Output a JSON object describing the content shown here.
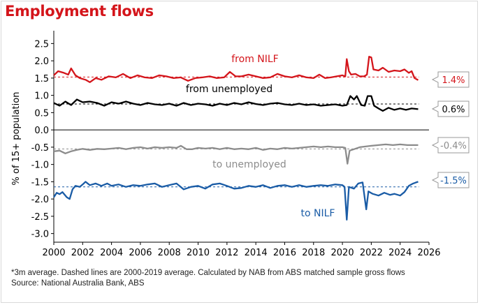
{
  "title": "Employment flows",
  "footnote": {
    "line1": "*3m average. Dashed lines are 2000-2019 average. Calculated by NAB from ABS matched sample gross flows",
    "line2": "Source: National Australia Bank, ABS"
  },
  "colors": {
    "title": "#d4151b",
    "from_nilf": "#d4151b",
    "from_unemployed": "#000000",
    "to_unemployed": "#8c8c8c",
    "to_nilf": "#1a5ca6"
  },
  "chart_data": {
    "type": "line",
    "title": "Employment flows",
    "ylabel": "% of 15+ population",
    "xlabel": "",
    "xlim": [
      2000,
      2026
    ],
    "ylim": [
      -3.25,
      2.75
    ],
    "x_ticks": [
      2000,
      2002,
      2004,
      2006,
      2008,
      2010,
      2012,
      2014,
      2016,
      2018,
      2020,
      2022,
      2024,
      2026
    ],
    "y_ticks": [
      2.5,
      2.0,
      1.5,
      1.0,
      0.5,
      0.0,
      -0.5,
      -1.0,
      -1.5,
      -2.0,
      -2.5,
      -3.0
    ],
    "grid": false,
    "zero_line": true,
    "series": [
      {
        "name": "from NILF",
        "color": "#d4151b",
        "average_2000_2019": 1.53,
        "end_label": "1.4%",
        "points": [
          [
            2000.0,
            1.58
          ],
          [
            2000.3,
            1.7
          ],
          [
            2000.7,
            1.65
          ],
          [
            2001.0,
            1.6
          ],
          [
            2001.2,
            1.78
          ],
          [
            2001.5,
            1.58
          ],
          [
            2001.8,
            1.5
          ],
          [
            2002.2,
            1.45
          ],
          [
            2002.5,
            1.38
          ],
          [
            2002.9,
            1.5
          ],
          [
            2003.3,
            1.45
          ],
          [
            2003.8,
            1.55
          ],
          [
            2004.3,
            1.52
          ],
          [
            2004.8,
            1.62
          ],
          [
            2005.3,
            1.5
          ],
          [
            2005.8,
            1.58
          ],
          [
            2006.3,
            1.52
          ],
          [
            2006.8,
            1.5
          ],
          [
            2007.3,
            1.58
          ],
          [
            2007.8,
            1.55
          ],
          [
            2008.3,
            1.5
          ],
          [
            2008.8,
            1.52
          ],
          [
            2009.3,
            1.42
          ],
          [
            2009.8,
            1.5
          ],
          [
            2010.3,
            1.52
          ],
          [
            2010.8,
            1.55
          ],
          [
            2011.3,
            1.5
          ],
          [
            2011.8,
            1.52
          ],
          [
            2012.2,
            1.68
          ],
          [
            2012.6,
            1.55
          ],
          [
            2013.0,
            1.55
          ],
          [
            2013.5,
            1.6
          ],
          [
            2014.0,
            1.55
          ],
          [
            2014.5,
            1.5
          ],
          [
            2015.0,
            1.52
          ],
          [
            2015.5,
            1.62
          ],
          [
            2016.0,
            1.55
          ],
          [
            2016.5,
            1.52
          ],
          [
            2017.0,
            1.58
          ],
          [
            2017.5,
            1.52
          ],
          [
            2018.0,
            1.5
          ],
          [
            2018.4,
            1.6
          ],
          [
            2018.8,
            1.5
          ],
          [
            2019.2,
            1.52
          ],
          [
            2019.6,
            1.55
          ],
          [
            2020.0,
            1.58
          ],
          [
            2020.2,
            1.55
          ],
          [
            2020.3,
            2.05
          ],
          [
            2020.45,
            1.7
          ],
          [
            2020.6,
            1.6
          ],
          [
            2020.9,
            1.62
          ],
          [
            2021.2,
            1.55
          ],
          [
            2021.5,
            1.55
          ],
          [
            2021.7,
            1.6
          ],
          [
            2021.85,
            2.12
          ],
          [
            2022.0,
            2.1
          ],
          [
            2022.15,
            1.75
          ],
          [
            2022.5,
            1.72
          ],
          [
            2022.8,
            1.8
          ],
          [
            2023.2,
            1.68
          ],
          [
            2023.6,
            1.72
          ],
          [
            2024.0,
            1.7
          ],
          [
            2024.3,
            1.75
          ],
          [
            2024.6,
            1.65
          ],
          [
            2024.8,
            1.7
          ],
          [
            2025.0,
            1.5
          ],
          [
            2025.25,
            1.44
          ]
        ]
      },
      {
        "name": "from unemployed",
        "color": "#000000",
        "average_2000_2019": 0.75,
        "end_label": "0.6%",
        "points": [
          [
            2000.0,
            0.78
          ],
          [
            2000.4,
            0.7
          ],
          [
            2000.8,
            0.82
          ],
          [
            2001.2,
            0.72
          ],
          [
            2001.6,
            0.88
          ],
          [
            2002.0,
            0.8
          ],
          [
            2002.5,
            0.82
          ],
          [
            2003.0,
            0.78
          ],
          [
            2003.5,
            0.7
          ],
          [
            2004.0,
            0.8
          ],
          [
            2004.5,
            0.76
          ],
          [
            2005.0,
            0.82
          ],
          [
            2005.5,
            0.76
          ],
          [
            2006.0,
            0.72
          ],
          [
            2006.5,
            0.78
          ],
          [
            2007.0,
            0.74
          ],
          [
            2007.5,
            0.72
          ],
          [
            2008.0,
            0.76
          ],
          [
            2008.5,
            0.7
          ],
          [
            2009.0,
            0.78
          ],
          [
            2009.5,
            0.72
          ],
          [
            2010.0,
            0.76
          ],
          [
            2010.5,
            0.74
          ],
          [
            2011.0,
            0.7
          ],
          [
            2011.5,
            0.76
          ],
          [
            2012.0,
            0.72
          ],
          [
            2012.5,
            0.78
          ],
          [
            2013.0,
            0.74
          ],
          [
            2013.5,
            0.8
          ],
          [
            2014.0,
            0.75
          ],
          [
            2014.5,
            0.72
          ],
          [
            2015.0,
            0.76
          ],
          [
            2015.5,
            0.78
          ],
          [
            2016.0,
            0.74
          ],
          [
            2016.5,
            0.72
          ],
          [
            2017.0,
            0.76
          ],
          [
            2017.5,
            0.72
          ],
          [
            2018.0,
            0.74
          ],
          [
            2018.5,
            0.7
          ],
          [
            2019.0,
            0.72
          ],
          [
            2019.5,
            0.74
          ],
          [
            2020.0,
            0.7
          ],
          [
            2020.3,
            0.72
          ],
          [
            2020.55,
            0.98
          ],
          [
            2020.8,
            0.88
          ],
          [
            2021.0,
            0.98
          ],
          [
            2021.3,
            0.72
          ],
          [
            2021.55,
            0.7
          ],
          [
            2021.75,
            0.98
          ],
          [
            2022.0,
            0.98
          ],
          [
            2022.2,
            0.7
          ],
          [
            2022.5,
            0.62
          ],
          [
            2022.8,
            0.55
          ],
          [
            2023.2,
            0.64
          ],
          [
            2023.6,
            0.58
          ],
          [
            2024.0,
            0.62
          ],
          [
            2024.4,
            0.58
          ],
          [
            2024.8,
            0.62
          ],
          [
            2025.25,
            0.6
          ]
        ]
      },
      {
        "name": "to unemployed",
        "color": "#8c8c8c",
        "average_2000_2019": -0.55,
        "end_label": "-0.4%",
        "points": [
          [
            2000.0,
            -0.62
          ],
          [
            2000.4,
            -0.6
          ],
          [
            2000.8,
            -0.68
          ],
          [
            2001.2,
            -0.62
          ],
          [
            2001.6,
            -0.58
          ],
          [
            2002.0,
            -0.55
          ],
          [
            2002.5,
            -0.58
          ],
          [
            2003.0,
            -0.55
          ],
          [
            2003.5,
            -0.56
          ],
          [
            2004.0,
            -0.54
          ],
          [
            2004.5,
            -0.52
          ],
          [
            2005.0,
            -0.56
          ],
          [
            2005.5,
            -0.52
          ],
          [
            2006.0,
            -0.5
          ],
          [
            2006.5,
            -0.54
          ],
          [
            2007.0,
            -0.5
          ],
          [
            2007.5,
            -0.52
          ],
          [
            2008.0,
            -0.5
          ],
          [
            2008.5,
            -0.52
          ],
          [
            2008.8,
            -0.46
          ],
          [
            2009.2,
            -0.56
          ],
          [
            2009.6,
            -0.56
          ],
          [
            2010.0,
            -0.52
          ],
          [
            2010.5,
            -0.54
          ],
          [
            2011.0,
            -0.52
          ],
          [
            2011.5,
            -0.56
          ],
          [
            2012.0,
            -0.52
          ],
          [
            2012.5,
            -0.56
          ],
          [
            2013.0,
            -0.54
          ],
          [
            2013.5,
            -0.56
          ],
          [
            2014.0,
            -0.52
          ],
          [
            2014.5,
            -0.58
          ],
          [
            2015.0,
            -0.54
          ],
          [
            2015.5,
            -0.56
          ],
          [
            2016.0,
            -0.52
          ],
          [
            2016.5,
            -0.54
          ],
          [
            2017.0,
            -0.52
          ],
          [
            2017.5,
            -0.5
          ],
          [
            2018.0,
            -0.48
          ],
          [
            2018.5,
            -0.5
          ],
          [
            2019.0,
            -0.48
          ],
          [
            2019.5,
            -0.5
          ],
          [
            2020.0,
            -0.5
          ],
          [
            2020.2,
            -0.52
          ],
          [
            2020.35,
            -0.98
          ],
          [
            2020.5,
            -0.6
          ],
          [
            2020.8,
            -0.56
          ],
          [
            2021.2,
            -0.5
          ],
          [
            2021.6,
            -0.48
          ],
          [
            2022.0,
            -0.46
          ],
          [
            2022.5,
            -0.44
          ],
          [
            2023.0,
            -0.42
          ],
          [
            2023.5,
            -0.44
          ],
          [
            2024.0,
            -0.42
          ],
          [
            2024.5,
            -0.44
          ],
          [
            2025.25,
            -0.44
          ]
        ]
      },
      {
        "name": "to NILF",
        "color": "#1a5ca6",
        "average_2000_2019": -1.65,
        "end_label": "-1.5%",
        "points": [
          [
            2000.0,
            -1.95
          ],
          [
            2000.2,
            -1.82
          ],
          [
            2000.4,
            -1.86
          ],
          [
            2000.6,
            -1.8
          ],
          [
            2000.9,
            -1.95
          ],
          [
            2001.1,
            -2.0
          ],
          [
            2001.3,
            -1.72
          ],
          [
            2001.5,
            -1.62
          ],
          [
            2001.8,
            -1.65
          ],
          [
            2002.0,
            -1.58
          ],
          [
            2002.2,
            -1.5
          ],
          [
            2002.5,
            -1.6
          ],
          [
            2002.9,
            -1.55
          ],
          [
            2003.3,
            -1.62
          ],
          [
            2003.7,
            -1.55
          ],
          [
            2004.0,
            -1.62
          ],
          [
            2004.5,
            -1.58
          ],
          [
            2005.0,
            -1.65
          ],
          [
            2005.5,
            -1.6
          ],
          [
            2006.0,
            -1.62
          ],
          [
            2006.5,
            -1.58
          ],
          [
            2007.0,
            -1.55
          ],
          [
            2007.5,
            -1.65
          ],
          [
            2008.0,
            -1.6
          ],
          [
            2008.5,
            -1.55
          ],
          [
            2009.0,
            -1.72
          ],
          [
            2009.5,
            -1.65
          ],
          [
            2010.0,
            -1.62
          ],
          [
            2010.5,
            -1.7
          ],
          [
            2011.0,
            -1.58
          ],
          [
            2011.5,
            -1.55
          ],
          [
            2012.0,
            -1.62
          ],
          [
            2012.5,
            -1.7
          ],
          [
            2013.0,
            -1.68
          ],
          [
            2013.5,
            -1.62
          ],
          [
            2014.0,
            -1.65
          ],
          [
            2014.5,
            -1.6
          ],
          [
            2015.0,
            -1.68
          ],
          [
            2015.5,
            -1.62
          ],
          [
            2016.0,
            -1.6
          ],
          [
            2016.5,
            -1.65
          ],
          [
            2017.0,
            -1.6
          ],
          [
            2017.5,
            -1.65
          ],
          [
            2018.0,
            -1.62
          ],
          [
            2018.5,
            -1.6
          ],
          [
            2019.0,
            -1.62
          ],
          [
            2019.5,
            -1.58
          ],
          [
            2020.0,
            -1.6
          ],
          [
            2020.15,
            -1.65
          ],
          [
            2020.3,
            -2.6
          ],
          [
            2020.45,
            -1.65
          ],
          [
            2020.8,
            -1.7
          ],
          [
            2021.1,
            -1.55
          ],
          [
            2021.4,
            -1.52
          ],
          [
            2021.65,
            -2.3
          ],
          [
            2021.8,
            -1.78
          ],
          [
            2022.1,
            -1.85
          ],
          [
            2022.5,
            -1.9
          ],
          [
            2022.9,
            -1.82
          ],
          [
            2023.3,
            -1.88
          ],
          [
            2023.6,
            -1.85
          ],
          [
            2024.0,
            -1.9
          ],
          [
            2024.3,
            -1.8
          ],
          [
            2024.6,
            -1.62
          ],
          [
            2024.9,
            -1.55
          ],
          [
            2025.1,
            -1.52
          ],
          [
            2025.25,
            -1.5
          ]
        ]
      }
    ],
    "series_labels": [
      "from NILF",
      "from unemployed",
      "to unemployed",
      "to NILF"
    ]
  }
}
